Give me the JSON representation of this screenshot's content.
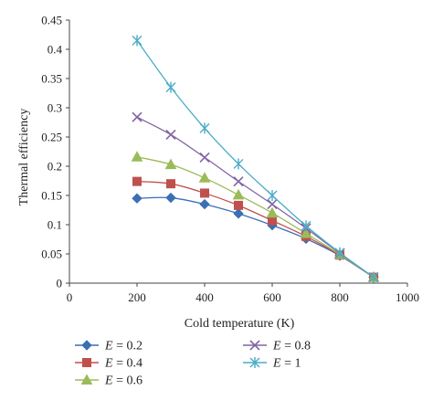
{
  "chart_data": {
    "type": "line",
    "xlabel": "Cold temperature (K)",
    "ylabel": "Thermal efficiency",
    "xlim": [
      0,
      1000
    ],
    "ylim": [
      0,
      0.45
    ],
    "x_ticks": [
      0,
      200,
      400,
      600,
      800,
      1000
    ],
    "y_ticks": [
      0,
      0.05,
      0.1,
      0.15,
      0.2,
      0.25,
      0.3,
      0.35,
      0.4,
      0.45
    ],
    "x_tick_labels": [
      "0",
      "200",
      "400",
      "600",
      "800",
      "1000"
    ],
    "y_tick_labels": [
      "0",
      "0.05",
      "0.1",
      "0.15",
      "0.2",
      "0.25",
      "0.3",
      "0.35",
      "0.4",
      "0.45"
    ],
    "grid": false,
    "legend_position": "bottom",
    "x": [
      200,
      300,
      400,
      500,
      600,
      700,
      800,
      900
    ],
    "series": [
      {
        "name": "E = 0.2",
        "italic_prefix": "E",
        "rest": " = 0.2",
        "marker": "diamond",
        "color": "#3a6fb5",
        "values": [
          0.145,
          0.146,
          0.135,
          0.119,
          0.099,
          0.076,
          0.047,
          0.01
        ]
      },
      {
        "name": "E = 0.4",
        "italic_prefix": "E",
        "rest": " = 0.4",
        "marker": "square",
        "color": "#c0504d",
        "values": [
          0.174,
          0.17,
          0.154,
          0.133,
          0.107,
          0.08,
          0.048,
          0.01
        ]
      },
      {
        "name": "E = 0.6",
        "italic_prefix": "E",
        "rest": " = 0.6",
        "marker": "triangle",
        "color": "#9bbb59",
        "values": [
          0.216,
          0.203,
          0.18,
          0.151,
          0.12,
          0.085,
          0.049,
          0.01
        ]
      },
      {
        "name": "E = 0.8",
        "italic_prefix": "E",
        "rest": " = 0.8",
        "marker": "x",
        "color": "#8064a2",
        "values": [
          0.284,
          0.254,
          0.215,
          0.174,
          0.135,
          0.094,
          0.051,
          0.01
        ]
      },
      {
        "name": "E = 1",
        "italic_prefix": "E",
        "rest": " = 1",
        "marker": "asterisk",
        "color": "#4bacc6",
        "values": [
          0.415,
          0.335,
          0.265,
          0.204,
          0.15,
          0.098,
          0.052,
          0.01
        ]
      }
    ]
  }
}
